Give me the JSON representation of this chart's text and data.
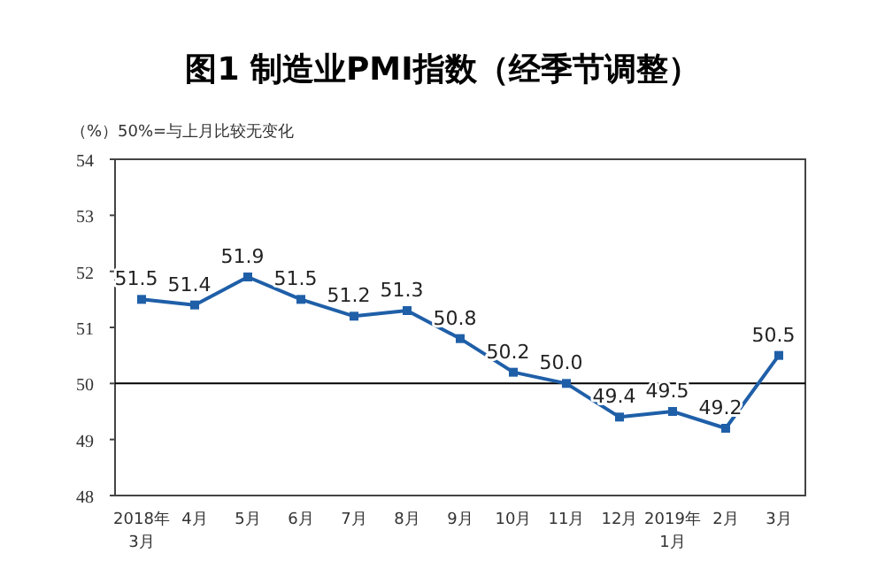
{
  "chart_data": {
    "type": "line",
    "title": "图1 制造业PMI指数（经季节调整）",
    "ylabel": "（%）50%=与上月比较无变化",
    "categories": [
      "2018年\n3月",
      "4月",
      "5月",
      "6月",
      "7月",
      "8月",
      "9月",
      "10月",
      "11月",
      "12月",
      "2019年\n1月",
      "2月",
      "3月"
    ],
    "series": [
      {
        "color": "#1f5fa8",
        "values": [
          51.5,
          51.4,
          51.9,
          51.5,
          51.2,
          51.3,
          50.8,
          50.2,
          50.0,
          49.4,
          49.5,
          49.2,
          50.5
        ],
        "value_labels": [
          "51.5",
          "51.4",
          "51.9",
          "51.5",
          "51.2",
          "51.3",
          "50.8",
          "50.2",
          "50.0",
          "49.4",
          "49.5",
          "49.2",
          "50.5"
        ]
      }
    ],
    "ylim": [
      48,
      54
    ],
    "yticks": [
      48,
      49,
      50,
      51,
      52,
      53,
      54
    ],
    "ref_lines": [
      {
        "axis": "y",
        "value": 50,
        "color": "#000000"
      }
    ],
    "marker": "square",
    "grid": false
  }
}
